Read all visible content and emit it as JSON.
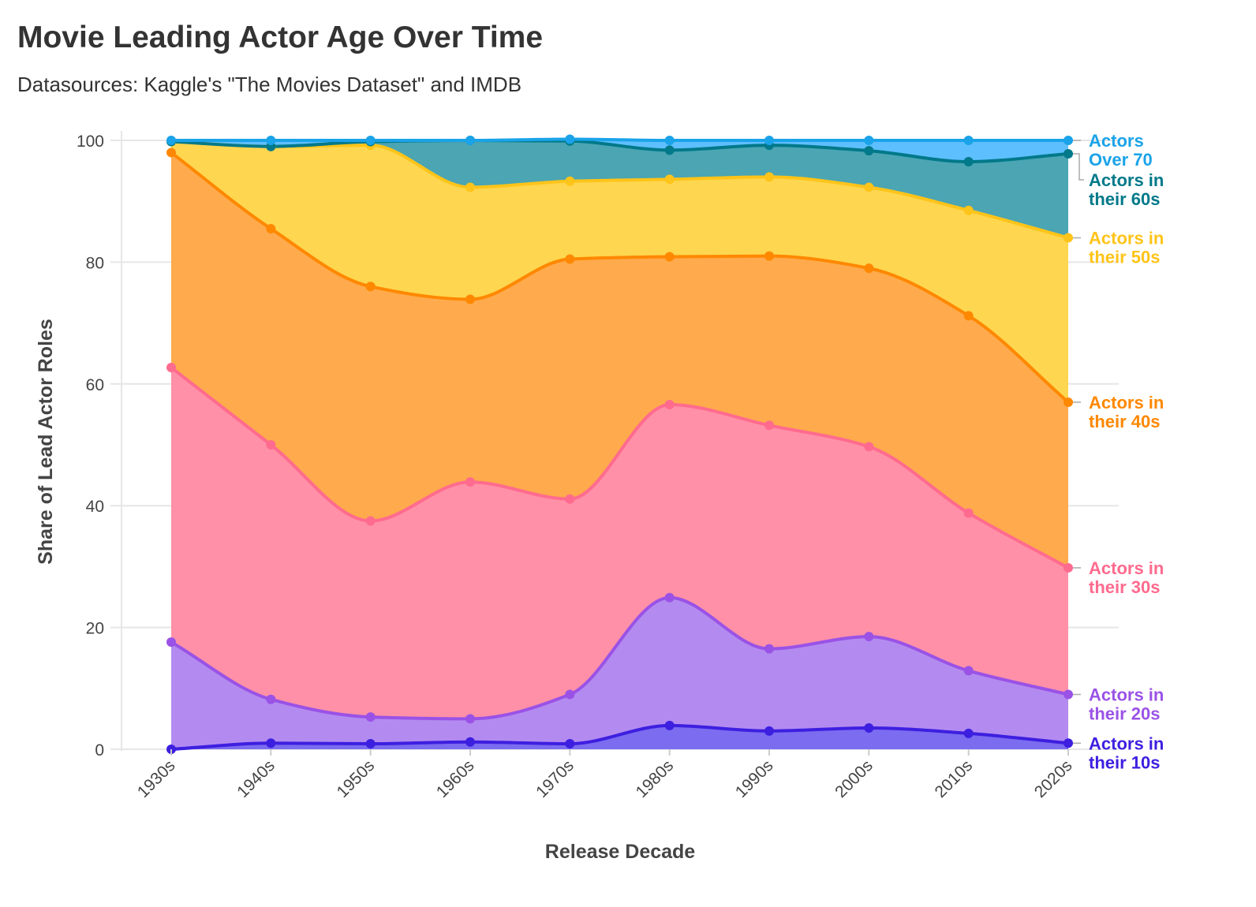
{
  "title": "Movie Leading Actor Age Over Time",
  "subtitle": "Datasources: Kaggle's \"The Movies Dataset\" and IMDB",
  "chart_data": {
    "type": "area",
    "stacked": true,
    "xlabel": "Release Decade",
    "ylabel": "Share of Lead Actor Roles",
    "ylim": [
      0,
      100
    ],
    "yticks": [
      0,
      20,
      40,
      60,
      80,
      100
    ],
    "categories": [
      "1930s",
      "1940s",
      "1950s",
      "1960s",
      "1970s",
      "1980s",
      "1990s",
      "2000s",
      "2010s",
      "2020s"
    ],
    "grid": true,
    "legend": "direct labels at right",
    "series": [
      {
        "name": "Actors in their 10s",
        "label_lines": [
          "Actors in",
          "their 10s"
        ],
        "color": "#3d1fe0",
        "fill": "#7b6cf0",
        "values": [
          0.0,
          1.0,
          0.9,
          1.2,
          0.9,
          3.9,
          3.0,
          3.5,
          2.6,
          1.0
        ]
      },
      {
        "name": "Actors in their 20s",
        "label_lines": [
          "Actors in",
          "their 20s"
        ],
        "color": "#9a52e6",
        "fill": "#b38bf0",
        "values": [
          17.6,
          7.2,
          4.4,
          3.8,
          8.1,
          21.0,
          13.5,
          15.0,
          10.3,
          8.0
        ]
      },
      {
        "name": "Actors in their 30s",
        "label_lines": [
          "Actors in",
          "their 30s"
        ],
        "color": "#ff6b8e",
        "fill": "#ff90a8",
        "values": [
          45.1,
          41.8,
          32.2,
          38.9,
          32.1,
          31.7,
          36.7,
          31.2,
          25.9,
          20.8
        ]
      },
      {
        "name": "Actors in their 40s",
        "label_lines": [
          "Actors in",
          "their 40s"
        ],
        "color": "#ff8800",
        "fill": "#ffaa4d",
        "values": [
          35.3,
          35.5,
          38.5,
          30.0,
          39.4,
          24.3,
          27.8,
          29.3,
          32.4,
          27.2
        ]
      },
      {
        "name": "Actors in their 50s",
        "label_lines": [
          "Actors in",
          "their 50s"
        ],
        "color": "#ffc419",
        "fill": "#ffd64f",
        "values": [
          1.8,
          13.5,
          23.2,
          18.4,
          12.8,
          12.7,
          13.0,
          13.3,
          17.3,
          27.0
        ]
      },
      {
        "name": "Actors in their 60s",
        "label_lines": [
          "Actors in",
          "their 60s"
        ],
        "color": "#00798a",
        "fill": "#4ba5b2",
        "values": [
          0.0,
          0.0,
          0.6,
          7.7,
          6.6,
          4.8,
          5.2,
          6.0,
          8.0,
          13.8
        ]
      },
      {
        "name": "Actors Over 70",
        "label_lines": [
          "Actors",
          "Over 70"
        ],
        "color": "#1aa3e8",
        "fill": "#5ebfff",
        "values": [
          0.2,
          1.0,
          0.2,
          0.0,
          0.3,
          1.6,
          0.8,
          1.7,
          3.5,
          2.2
        ]
      }
    ]
  }
}
